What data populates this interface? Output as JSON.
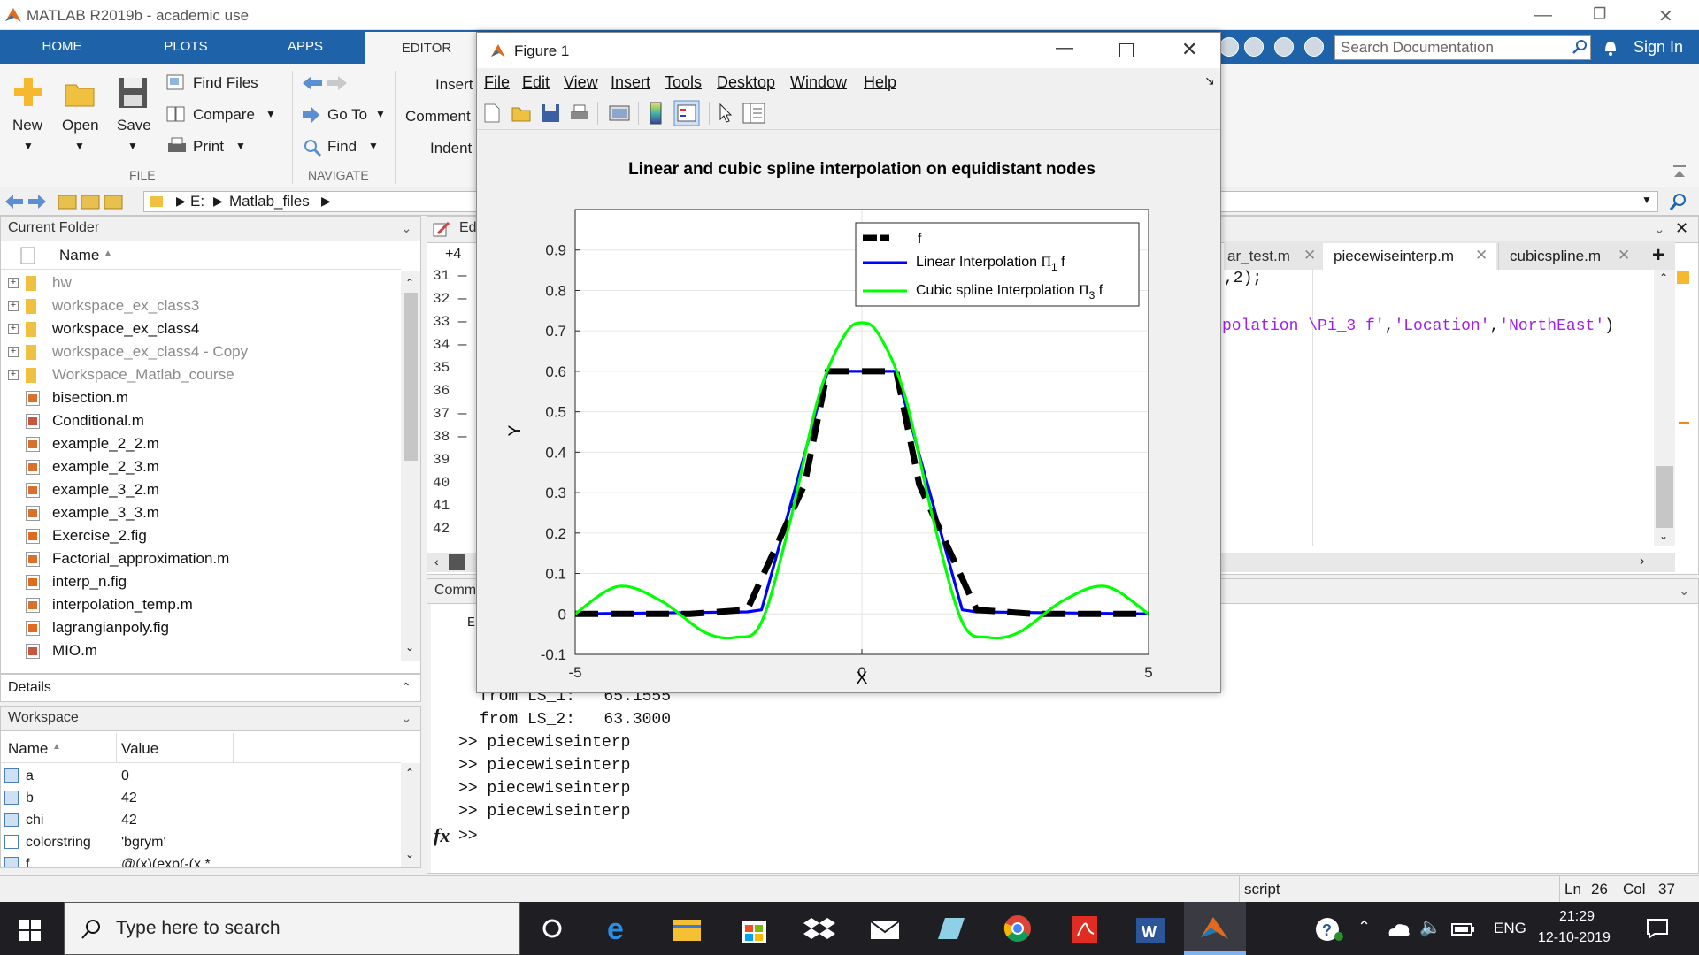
{
  "window": {
    "title": "MATLAB R2019b - academic use"
  },
  "tabs": {
    "home": "HOME",
    "plots": "PLOTS",
    "apps": "APPS",
    "editor": "EDITOR"
  },
  "search": {
    "placeholder": "Search Documentation",
    "signin": "Sign In"
  },
  "ribbon": {
    "new": "New",
    "open": "Open",
    "save": "Save",
    "find_files": "Find Files",
    "compare": "Compare",
    "print": "Print",
    "file_group": "FILE",
    "go_to": "Go To",
    "find": "Find",
    "navigate_group": "NAVIGATE",
    "insert": "Insert",
    "comment": "Comment",
    "indent": "Indent"
  },
  "address": {
    "drive": "E:",
    "folder": "Matlab_files"
  },
  "current_folder": {
    "title": "Current Folder",
    "name_header": "Name",
    "items": [
      {
        "name": "hw",
        "type": "folder",
        "muted": true
      },
      {
        "name": "workspace_ex_class3",
        "type": "folder",
        "muted": true
      },
      {
        "name": "workspace_ex_class4",
        "type": "folder",
        "muted": false
      },
      {
        "name": "workspace_ex_class4 - Copy",
        "type": "folder",
        "muted": true
      },
      {
        "name": "Workspace_Matlab_course",
        "type": "folder",
        "muted": true
      },
      {
        "name": "bisection.m",
        "type": "m",
        "muted": false
      },
      {
        "name": "Conditional.m",
        "type": "fx",
        "muted": false
      },
      {
        "name": "example_2_2.m",
        "type": "m",
        "muted": false
      },
      {
        "name": "example_2_3.m",
        "type": "m",
        "muted": false
      },
      {
        "name": "example_3_2.m",
        "type": "m",
        "muted": false
      },
      {
        "name": "example_3_3.m",
        "type": "m",
        "muted": false
      },
      {
        "name": "Exercise_2.fig",
        "type": "fig",
        "muted": false
      },
      {
        "name": "Factorial_approximation.m",
        "type": "m",
        "muted": false
      },
      {
        "name": "interp_n.fig",
        "type": "fig",
        "muted": false
      },
      {
        "name": "interpolation_temp.m",
        "type": "m",
        "muted": false
      },
      {
        "name": "lagrangianpoly.fig",
        "type": "fig",
        "muted": false
      },
      {
        "name": "MIO.m",
        "type": "fx",
        "muted": false
      }
    ]
  },
  "details": {
    "title": "Details"
  },
  "workspace": {
    "title": "Workspace",
    "name_header": "Name",
    "value_header": "Value",
    "vars": [
      {
        "name": "a",
        "value": "0"
      },
      {
        "name": "b",
        "value": "42"
      },
      {
        "name": "chi",
        "value": "42"
      },
      {
        "name": "colorstring",
        "value": "'bgrym'"
      },
      {
        "name": "f",
        "value": "@(x)(exp(-(x.*"
      }
    ]
  },
  "editor": {
    "panel_title": "Ed",
    "offset": "+4",
    "line_numbers": [
      "31",
      "32",
      "33",
      "34",
      "35",
      "36",
      "37",
      "38",
      "39",
      "40",
      "41",
      "42"
    ],
    "tabs": [
      "ar_test.m",
      "piecewiseinterp.m",
      "cubicspline.m"
    ],
    "code_line1": ",2);",
    "code_line2_part1": "polation \\Pi_3 f'",
    "code_line2_part2": ",",
    "code_line2_part3": "'Location'",
    "code_line2_part4": ",",
    "code_line2_part5": "'NorthEast'",
    "code_line2_part6": ")"
  },
  "command_window": {
    "title": "Comm",
    "e_char": "E",
    "lines": [
      "from LS_1:   65.1555",
      "from LS_2:   63.3000",
      ">> piecewiseinterp",
      ">> piecewiseinterp",
      ">> piecewiseinterp",
      ">> piecewiseinterp"
    ],
    "prompt": ">>",
    "fx": "fx"
  },
  "figure": {
    "title": "Figure 1",
    "menu": [
      "File",
      "Edit",
      "View",
      "Insert",
      "Tools",
      "Desktop",
      "Window",
      "Help"
    ]
  },
  "chart_data": {
    "type": "line",
    "title": "Linear and cubic spline interpolation on equidistant nodes",
    "xlabel": "X",
    "ylabel": "Y",
    "xlim": [
      -5,
      5
    ],
    "ylim": [
      -0.1,
      1.0
    ],
    "xticks": [
      -5,
      0,
      5
    ],
    "yticks": [
      -0.1,
      0,
      0.1,
      0.2,
      0.3,
      0.4,
      0.5,
      0.6,
      0.7,
      0.8,
      0.9
    ],
    "grid": "horizontal",
    "legend_position": "top-right",
    "legend": [
      {
        "label": "f",
        "sub": "",
        "rest": "",
        "color": "#000000"
      },
      {
        "label": "Linear Interpolation ",
        "sub": "1",
        "rest": " f",
        "color": "#0000ff"
      },
      {
        "label": "Cubic spline Interpolation ",
        "sub": "3",
        "rest": " f",
        "color": "#00ff00"
      }
    ],
    "series": [
      {
        "name": "f",
        "style": "dashed",
        "color": "#000000",
        "x": [
          -5,
          -4,
          -3,
          -2,
          -1,
          -0.6,
          0,
          0.6,
          1,
          2,
          3,
          4,
          5
        ],
        "y": [
          0,
          0,
          0,
          0.01,
          0.32,
          0.6,
          0.6,
          0.6,
          0.32,
          0.01,
          0,
          0,
          0
        ]
      },
      {
        "name": "Linear Interpolation",
        "style": "solid",
        "color": "#0000ff",
        "x": [
          -5,
          -2,
          -1.75,
          -0.6,
          0.6,
          1.75,
          2,
          5
        ],
        "y": [
          0,
          0.005,
          0.01,
          0.6,
          0.6,
          0.01,
          0.005,
          0
        ]
      },
      {
        "name": "Cubic spline Interpolation",
        "style": "solid",
        "color": "#00ff00",
        "x": [
          -5,
          -4.25,
          -3.5,
          -2.75,
          -2.2,
          -1.75,
          -1.25,
          -0.75,
          -0.3,
          0,
          0.3,
          0.75,
          1.25,
          1.75,
          2.2,
          2.75,
          3.5,
          4.25,
          5
        ],
        "y": [
          0,
          0.068,
          0.032,
          -0.045,
          -0.058,
          -0.02,
          0.23,
          0.54,
          0.69,
          0.72,
          0.69,
          0.54,
          0.23,
          -0.02,
          -0.058,
          -0.045,
          0.032,
          0.068,
          0
        ]
      }
    ]
  },
  "status": {
    "mode": "script",
    "ln_label": "Ln",
    "ln": "26",
    "col_label": "Col",
    "col": "37"
  },
  "taskbar": {
    "search": "Type here to search",
    "lang": "ENG",
    "time": "21:29",
    "date": "12-10-2019"
  }
}
